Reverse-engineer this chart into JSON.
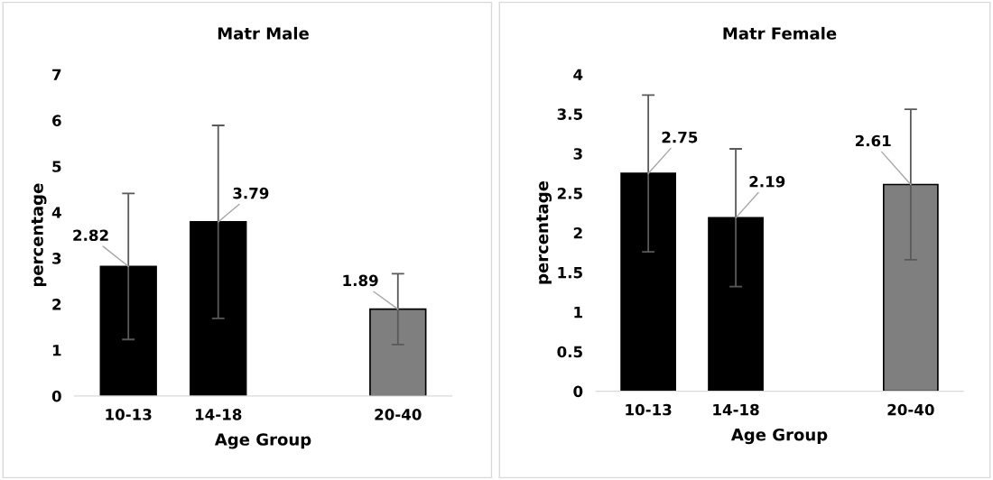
{
  "chart_data": [
    {
      "type": "bar",
      "title": "Matr Male",
      "xlabel": "Age Group",
      "ylabel": "percentage",
      "categories": [
        "10-13",
        "14-18",
        null,
        "20-40"
      ],
      "values": [
        2.82,
        3.79,
        null,
        1.89
      ],
      "colors": [
        "#000000",
        "#000000",
        "#000000",
        "#7f7f7f"
      ],
      "errors": [
        1.59,
        2.1,
        null,
        0.77
      ],
      "ylim": [
        0,
        7
      ],
      "yticks": [
        0,
        1,
        2,
        3,
        4,
        5,
        6,
        7
      ],
      "data_labels": true,
      "grid": false,
      "legend": false
    },
    {
      "type": "bar",
      "title": "Matr Female",
      "xlabel": "Age Group",
      "ylabel": "percentage",
      "categories": [
        "10-13",
        "14-18",
        null,
        "20-40"
      ],
      "values": [
        2.75,
        2.19,
        null,
        2.61
      ],
      "colors": [
        "#000000",
        "#000000",
        "#000000",
        "#7f7f7f"
      ],
      "errors": [
        0.99,
        0.87,
        null,
        0.95
      ],
      "ylim": [
        0,
        4
      ],
      "yticks": [
        0,
        0.5,
        1,
        1.5,
        2,
        2.5,
        3,
        3.5,
        4
      ],
      "data_labels": true,
      "grid": false,
      "legend": false
    }
  ]
}
